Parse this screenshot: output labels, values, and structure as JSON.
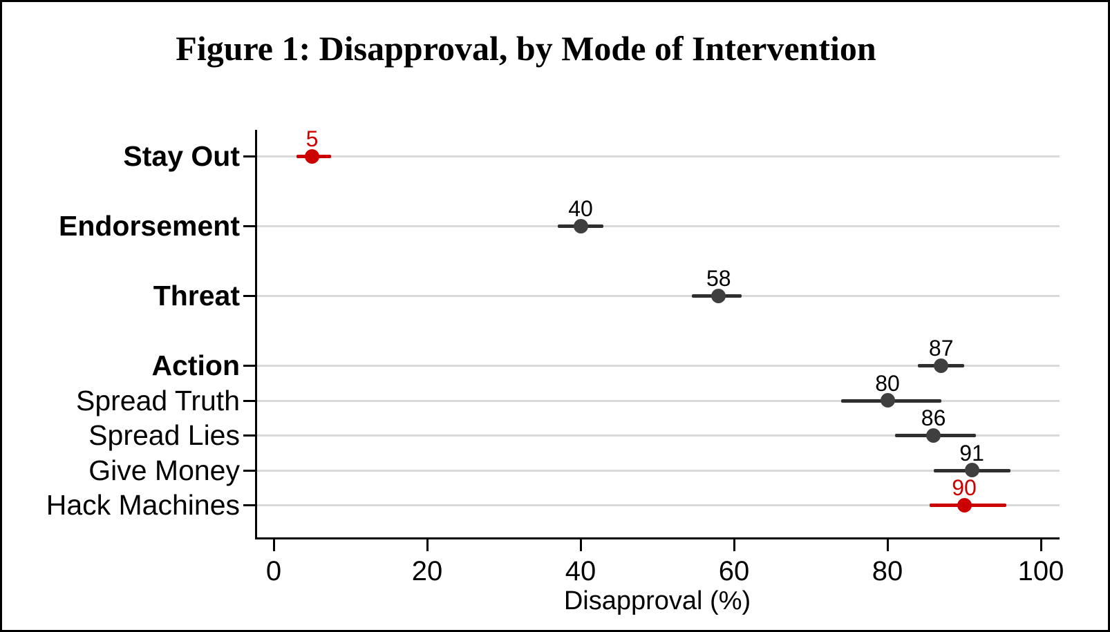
{
  "chart_data": {
    "type": "scatter",
    "variant": "horizontal_dot_plot_with_error_bars",
    "title": "Figure 1: Disapproval, by Mode of Intervention",
    "xlabel": "Disapproval (%)",
    "xlim": [
      -2.4,
      102.4
    ],
    "x_ticks": [
      "0",
      "20",
      "40",
      "60",
      "80",
      "100"
    ],
    "grid": true,
    "legend_position": "none",
    "colors": {
      "highlight": "#cc0000",
      "marker": "#3f3f3f",
      "error_bar": "#2e2e2e",
      "gridline": "#d9d9d9",
      "axis": "#000000",
      "value_label": "#000000",
      "background": "#ffffff"
    },
    "points": [
      {
        "category": "Stay Out",
        "value": 5,
        "value_label": "5",
        "ci_low": 3,
        "ci_high": 7.5,
        "subitem": false,
        "highlight": true
      },
      {
        "category": "Endorsement",
        "value": 40,
        "value_label": "40",
        "ci_low": 37,
        "ci_high": 43,
        "subitem": false,
        "highlight": false
      },
      {
        "category": "Threat",
        "value": 58,
        "value_label": "58",
        "ci_low": 54.5,
        "ci_high": 61,
        "subitem": false,
        "highlight": false
      },
      {
        "category": "Action",
        "value": 87,
        "value_label": "87",
        "ci_low": 84,
        "ci_high": 90,
        "subitem": false,
        "highlight": false
      },
      {
        "category": "Spread Truth",
        "value": 80,
        "value_label": "80",
        "ci_low": 74,
        "ci_high": 87,
        "subitem": true,
        "highlight": false
      },
      {
        "category": "Spread Lies",
        "value": 86,
        "value_label": "86",
        "ci_low": 81,
        "ci_high": 91.5,
        "subitem": true,
        "highlight": false
      },
      {
        "category": "Give Money",
        "value": 91,
        "value_label": "91",
        "ci_low": 86,
        "ci_high": 96,
        "subitem": true,
        "highlight": false
      },
      {
        "category": "Hack Machines",
        "value": 90,
        "value_label": "90",
        "ci_low": 85.5,
        "ci_high": 95.5,
        "subitem": true,
        "highlight": true
      }
    ]
  }
}
